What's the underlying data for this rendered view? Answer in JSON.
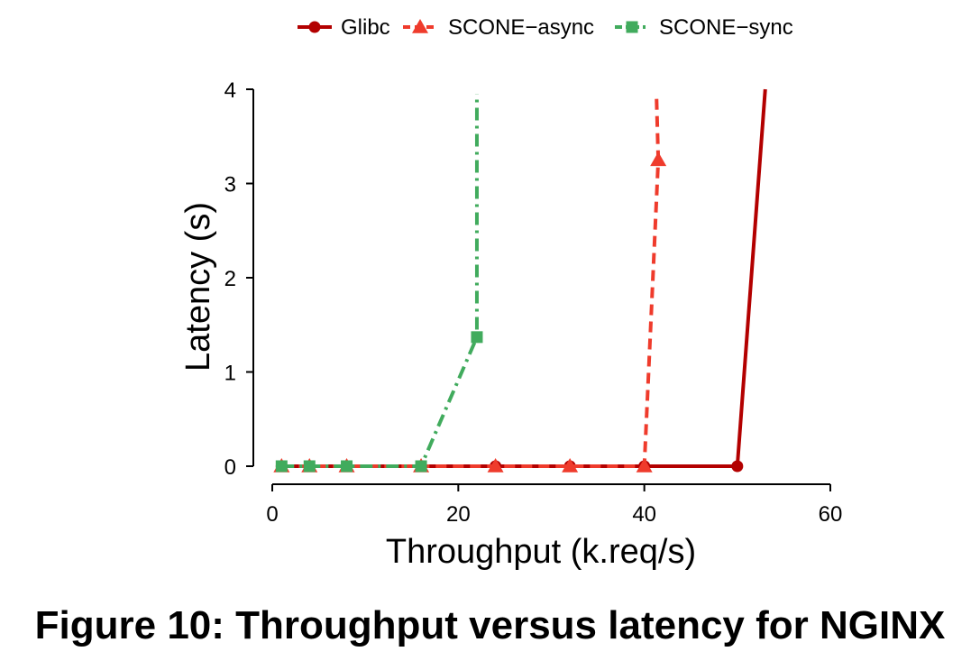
{
  "chart_data": {
    "type": "line",
    "xlabel": "Throughput (k.req/s)",
    "ylabel": "Latency (s)",
    "xlim": [
      0,
      60
    ],
    "ylim": [
      0,
      4
    ],
    "xticks": [
      0,
      20,
      40,
      60
    ],
    "yticks": [
      0,
      1,
      2,
      3,
      4
    ],
    "grid": false,
    "legend_position": "top",
    "series": [
      {
        "name": "Glibc",
        "color": "#b30000",
        "line_style": "solid",
        "marker": "circle",
        "points": [
          {
            "x": 1,
            "y": 0.0
          },
          {
            "x": 4,
            "y": 0.0
          },
          {
            "x": 8,
            "y": 0.0
          },
          {
            "x": 16,
            "y": 0.0
          },
          {
            "x": 24,
            "y": 0.0
          },
          {
            "x": 32,
            "y": 0.0
          },
          {
            "x": 40,
            "y": 0.0
          },
          {
            "x": 50,
            "y": 0.0
          }
        ],
        "extension": {
          "x": 53,
          "y": 4.0
        }
      },
      {
        "name": "SCONE−async",
        "color": "#ef3b2c",
        "line_style": "dashed",
        "marker": "triangle",
        "points": [
          {
            "x": 1,
            "y": 0.0
          },
          {
            "x": 4,
            "y": 0.0
          },
          {
            "x": 8,
            "y": 0.0
          },
          {
            "x": 16,
            "y": 0.0
          },
          {
            "x": 24,
            "y": 0.0
          },
          {
            "x": 32,
            "y": 0.0
          },
          {
            "x": 40,
            "y": 0.0
          },
          {
            "x": 41.5,
            "y": 3.25
          }
        ],
        "extension": {
          "x": 41.3,
          "y": 3.95
        }
      },
      {
        "name": "SCONE−sync",
        "color": "#41ab5d",
        "line_style": "dashdot",
        "marker": "square",
        "points": [
          {
            "x": 1,
            "y": 0.0
          },
          {
            "x": 4,
            "y": 0.0
          },
          {
            "x": 8,
            "y": 0.0
          },
          {
            "x": 16,
            "y": 0.0
          },
          {
            "x": 22,
            "y": 1.37
          }
        ],
        "extension": {
          "x": 22,
          "y": 3.95
        }
      }
    ]
  },
  "caption": "Figure 10: Throughput versus latency for NGINX"
}
